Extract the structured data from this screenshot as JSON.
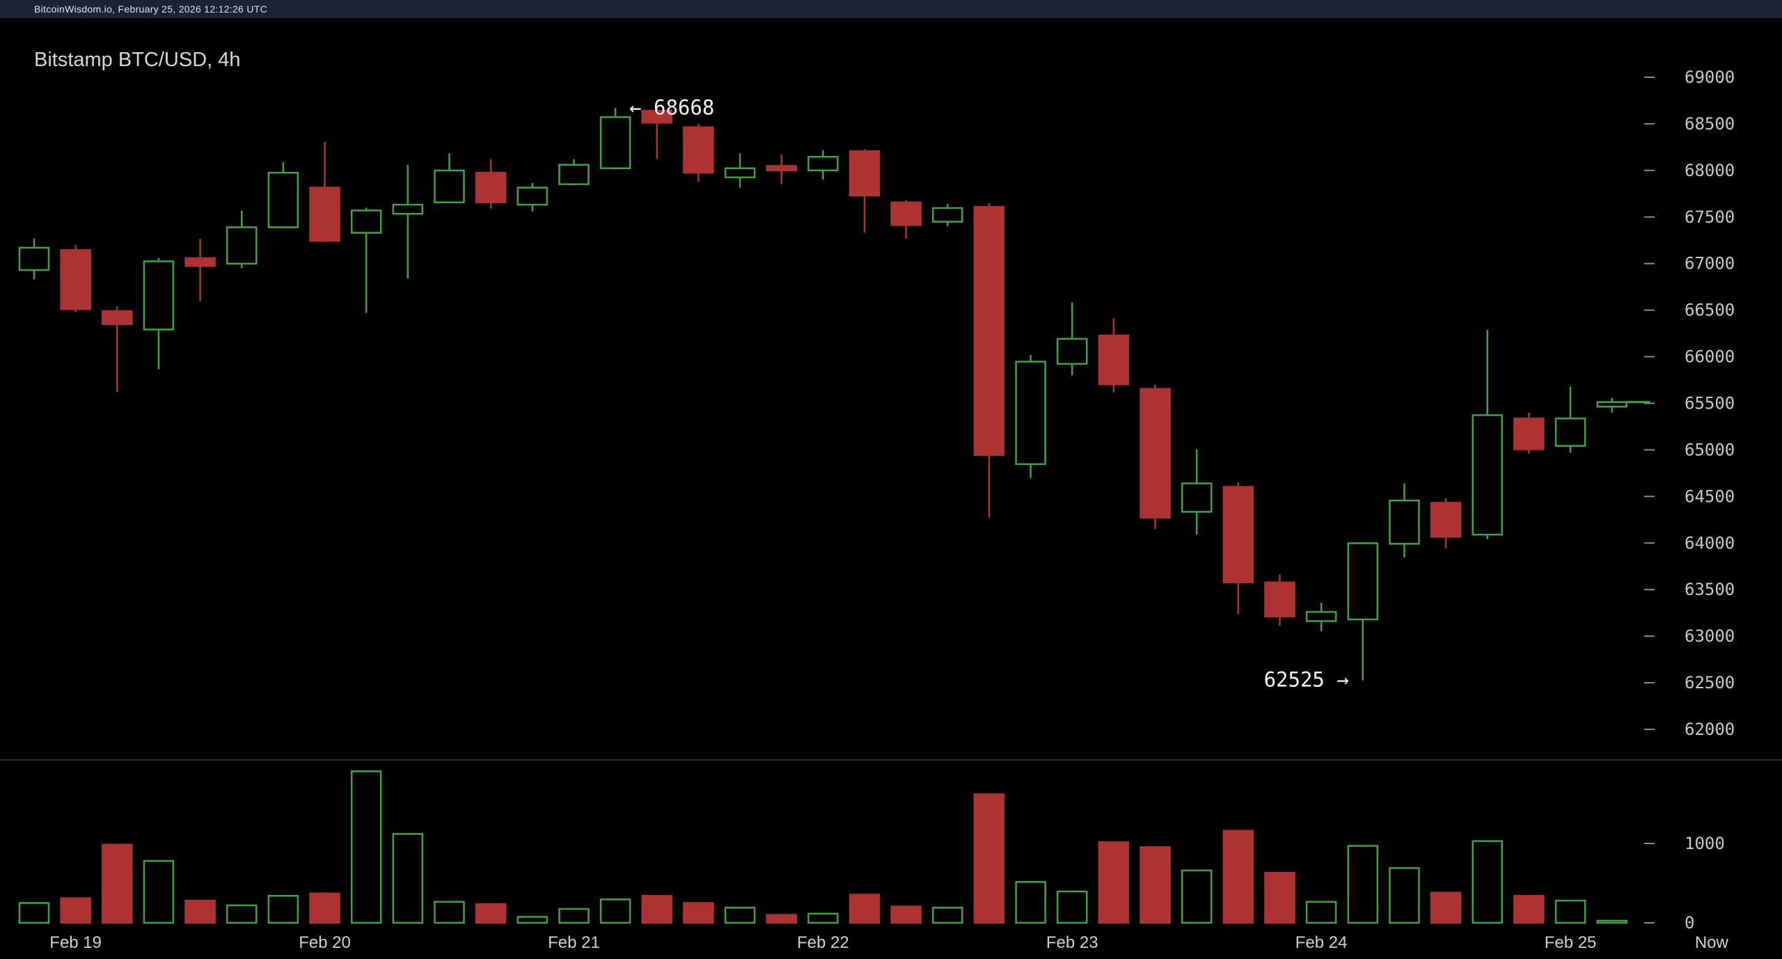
{
  "status_bar": {
    "text": "BitcoinWisdom.io, February 25, 2026 12:12:26 UTC"
  },
  "chart": {
    "title": "Bitstamp BTC/USD, 4h"
  },
  "colors": {
    "background": "#000000",
    "topbar_background": "#1a2235",
    "up": "#3fa33f",
    "down": "#ad3333",
    "axis_text": "#c8c8c8",
    "date_text": "#cfcfcf",
    "title_text": "#d6d6d6",
    "status_text": "#dfe3ea",
    "annotation_text": "#f5f5f5",
    "tick_mark": "#8a8a8a",
    "divider": "#2e2e2e"
  },
  "chart_data": {
    "type": "candlestick",
    "exchange": "Bitstamp",
    "pair": "BTC/USD",
    "interval": "4h",
    "title": "Bitstamp BTC/USD, 4h",
    "price_axis": {
      "min": 62000,
      "max": 69000,
      "tick_step": 500,
      "ticks": [
        69000,
        68500,
        68000,
        67500,
        67000,
        66500,
        66000,
        65500,
        65000,
        64500,
        64000,
        63500,
        63000,
        62500,
        62000
      ]
    },
    "volume_axis": {
      "ticks": [
        1000,
        0
      ]
    },
    "x_labels": [
      {
        "label": "Feb 19",
        "index": 1
      },
      {
        "label": "Feb 20",
        "index": 7
      },
      {
        "label": "Feb 21",
        "index": 13
      },
      {
        "label": "Feb 22",
        "index": 19
      },
      {
        "label": "Feb 23",
        "index": 25
      },
      {
        "label": "Feb 24",
        "index": 31
      },
      {
        "label": "Feb 25",
        "index": 37
      },
      {
        "label": "Now",
        "index": 40.4
      }
    ],
    "candles": {
      "format": [
        "open",
        "high",
        "low",
        "close",
        "volume"
      ],
      "data": [
        [
          66930,
          67270,
          66830,
          67170,
          250
        ],
        [
          67145,
          67200,
          66480,
          66510,
          310
        ],
        [
          66490,
          66540,
          65620,
          66350,
          985
        ],
        [
          66292,
          67060,
          65865,
          67024,
          780
        ],
        [
          67058,
          67266,
          66594,
          66973,
          280
        ],
        [
          66999,
          67570,
          66950,
          67390,
          220
        ],
        [
          67390,
          68090,
          67380,
          67975,
          340
        ],
        [
          67815,
          68304,
          67230,
          67243,
          370
        ],
        [
          67330,
          67600,
          66470,
          67570,
          1910
        ],
        [
          67534,
          68060,
          66840,
          67632,
          1120
        ],
        [
          67657,
          68182,
          67650,
          67999,
          265
        ],
        [
          67975,
          68121,
          67590,
          67657,
          235
        ],
        [
          67632,
          67864,
          67560,
          67815,
          75
        ],
        [
          67852,
          68121,
          67840,
          68060,
          175
        ],
        [
          68023,
          68668,
          68010,
          68572,
          295
        ],
        [
          68640,
          68655,
          68121,
          68512,
          340
        ],
        [
          68463,
          68500,
          67876,
          67975,
          250
        ],
        [
          67925,
          68182,
          67815,
          68023,
          190
        ],
        [
          68048,
          68170,
          67852,
          68000,
          100
        ],
        [
          68000,
          68219,
          67901,
          68146,
          115
        ],
        [
          68206,
          68230,
          67330,
          67730,
          355
        ],
        [
          67657,
          67680,
          67266,
          67413,
          205
        ],
        [
          67449,
          67640,
          67400,
          67596,
          190
        ],
        [
          67608,
          67650,
          64273,
          64945,
          1620
        ],
        [
          64847,
          66020,
          64700,
          65947,
          515
        ],
        [
          65923,
          66582,
          65800,
          66192,
          395
        ],
        [
          66228,
          66411,
          65617,
          65703,
          1015
        ],
        [
          65654,
          65700,
          64150,
          64273,
          955
        ],
        [
          64335,
          65006,
          64090,
          64640,
          660
        ],
        [
          64603,
          64650,
          63235,
          63577,
          1160
        ],
        [
          63577,
          63663,
          63113,
          63211,
          630
        ],
        [
          63162,
          63358,
          63052,
          63260,
          265
        ],
        [
          63180,
          64010,
          62525,
          63998,
          970
        ],
        [
          63992,
          64639,
          63845,
          64456,
          690
        ],
        [
          64432,
          64480,
          63940,
          64066,
          380
        ],
        [
          64090,
          66289,
          64041,
          65373,
          1030
        ],
        [
          65337,
          65400,
          64957,
          65006,
          340
        ],
        [
          65043,
          65678,
          64970,
          65337,
          280
        ],
        [
          65464,
          65560,
          65400,
          65513,
          20
        ]
      ]
    },
    "annotations": [
      {
        "text": "← 68668",
        "price": 68668,
        "candle_index": 14,
        "side": "right"
      },
      {
        "text": "62525 →",
        "price": 62525,
        "candle_index": 32,
        "side": "left"
      }
    ],
    "last_price": 65513
  }
}
